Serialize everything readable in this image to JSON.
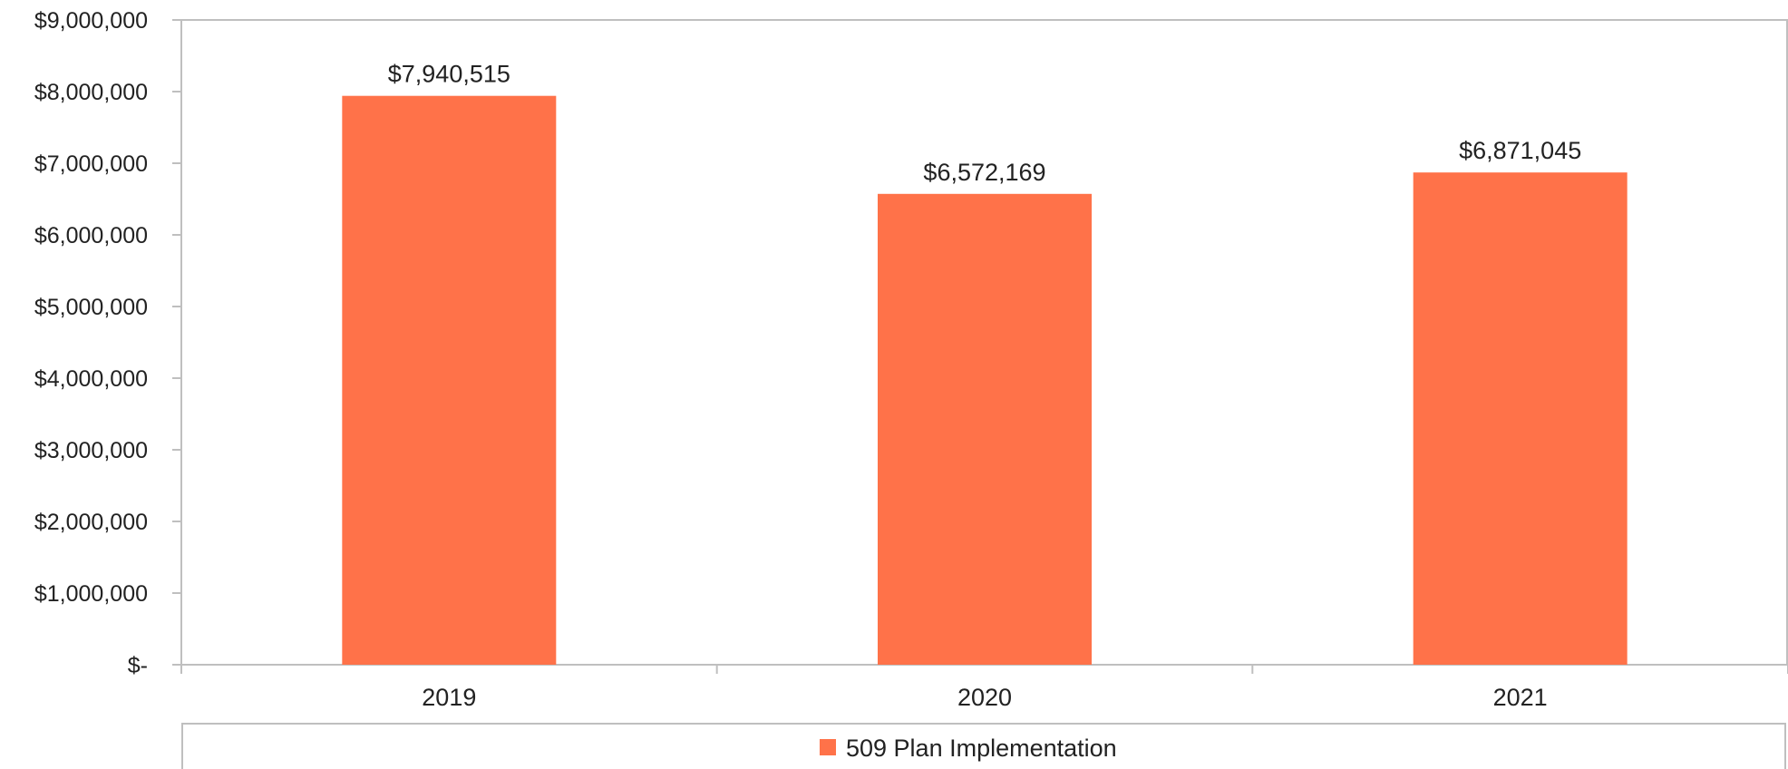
{
  "chart_data": {
    "type": "bar",
    "categories": [
      "2019",
      "2020",
      "2021"
    ],
    "series": [
      {
        "name": "509 Plan Implementation",
        "values": [
          7940515,
          6572169,
          6871045
        ],
        "labels": [
          "$7,940,515",
          "$6,572,169",
          "$6,871,045"
        ],
        "color": "#FF7249"
      }
    ],
    "ylim": [
      0,
      9000000
    ],
    "yticks": [
      0,
      1000000,
      2000000,
      3000000,
      4000000,
      5000000,
      6000000,
      7000000,
      8000000,
      9000000
    ],
    "ytick_labels": [
      "$-",
      "$1,000,000",
      "$2,000,000",
      "$3,000,000",
      "$4,000,000",
      "$5,000,000",
      "$6,000,000",
      "$7,000,000",
      "$8,000,000",
      "$9,000,000"
    ],
    "grid": false,
    "legend_position": "bottom",
    "axis_color": "#BFBFBF"
  }
}
